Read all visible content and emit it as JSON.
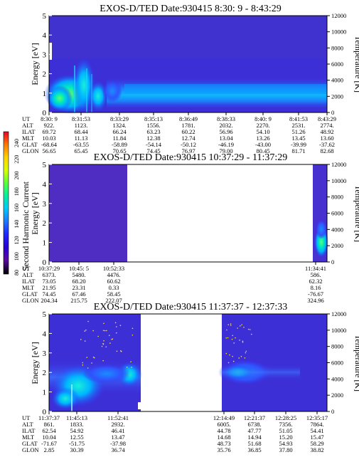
{
  "colorbar": {
    "label": "Second Harmonic Current",
    "ticks": [
      "240",
      "220",
      "200",
      "180",
      "160",
      "140",
      "120",
      "100",
      "80"
    ],
    "colors": [
      "#e8002a",
      "#ff7800",
      "#ffd200",
      "#d8ff00",
      "#5cff3c",
      "#00f0a0",
      "#00c8ff",
      "#1e78ff",
      "#1e28ff",
      "#2800d8",
      "#5a0aa0",
      "#000000"
    ]
  },
  "panels": [
    {
      "title": "EXOS-D/TED   Date:930415   8:30: 9 - 8:43:29",
      "y_ticks": [
        "0",
        "1",
        "2",
        "3",
        "4",
        "5"
      ],
      "y_label": "Energy [eV]",
      "t_ticks": [
        "0",
        "2000",
        "4000",
        "6000",
        "8000",
        "10000",
        "12000"
      ],
      "t_label": "Temperature [K]",
      "ephemeris": {
        "labels": [
          "UT",
          "ALT",
          "ILAT",
          "MLT",
          "GLAT",
          "GLON"
        ],
        "columns": [
          [
            "8:30: 9",
            "922.",
            "69.72",
            "10.03",
            "-68.64",
            "56.65"
          ],
          [
            "8:31:53",
            "1123.",
            "68.44",
            "11.13",
            "-63.55",
            "65.45"
          ],
          [
            "8:33:29",
            "1324.",
            "66.24",
            "11.84",
            "-58.89",
            "70.65"
          ],
          [
            "8:35:13",
            "1556.",
            "63.23",
            "12.38",
            "-54.14",
            "74.45"
          ],
          [
            "8:36:49",
            "1781.",
            "60.22",
            "12.74",
            "-50.12",
            "76.97"
          ],
          [
            "8:38:33",
            "2032.",
            "56.96",
            "13.04",
            "-46.19",
            "79.00"
          ],
          [
            "8:40: 9",
            "2270.",
            "54.10",
            "13.26",
            "-43.00",
            "80.45"
          ],
          [
            "8:41:53",
            "2531.",
            "51.26",
            "13.45",
            "-39.99",
            "81.71"
          ],
          [
            "8:43:29",
            "2774.",
            "48.92",
            "13.60",
            "-37.62",
            "82.68"
          ]
        ]
      }
    },
    {
      "title": "EXOS-D/TED   Date:930415   10:37:29 - 11:37:29",
      "y_ticks": [
        "0",
        "1",
        "2",
        "3",
        "4",
        "5"
      ],
      "y_label": "Energy [eV]",
      "t_ticks": [
        "0",
        "2000",
        "4000",
        "6000",
        "8000",
        "10000",
        "12000"
      ],
      "t_label": "Temperature [K]",
      "ephemeris": {
        "labels": [
          "UT",
          "ALT",
          "ILAT",
          "MLT",
          "GLAT",
          "GLON"
        ],
        "columns": [
          [
            "10:37:29",
            "6373.",
            "73.05",
            "21.95",
            "74.45",
            "204.34"
          ],
          [
            "10:45: 5",
            "5480.",
            "68.20",
            "23.31",
            "67.46",
            "215.75"
          ],
          [
            "10:52:33",
            "4476.",
            "60.62",
            "0.33",
            "58.45",
            "222.07"
          ],
          [
            "11:34:41",
            "586.",
            "62.32",
            "8.16",
            "-76.67",
            "324.96"
          ]
        ]
      }
    },
    {
      "title": "EXOS-D/TED   Date:930415   11:37:37 - 12:37:33",
      "y_ticks": [
        "0",
        "1",
        "2",
        "3",
        "4",
        "5"
      ],
      "y_label": "Energy [eV]",
      "t_ticks": [
        "0",
        "2000",
        "4000",
        "6000",
        "8000",
        "10000",
        "12000"
      ],
      "t_label": "Temperature [K]",
      "ephemeris": {
        "labels": [
          "UT",
          "ALT",
          "ILAT",
          "MLT",
          "GLAT",
          "GLON"
        ],
        "columns": [
          [
            "11:37:37",
            "861.",
            "62.54",
            "10.04",
            "-71.67",
            "2.85"
          ],
          [
            "11:45:13",
            "1833.",
            "54.92",
            "12.55",
            "-51.75",
            "30.39"
          ],
          [
            "11:52:41",
            "2932.",
            "46.41",
            "13.47",
            "-37.98",
            "36.74"
          ],
          [
            "12:14:49",
            "6005.",
            "44.78",
            "14.68",
            "48.73",
            "35.76"
          ],
          [
            "12:21:37",
            "6738.",
            "47.77",
            "14.94",
            "51.68",
            "36.85"
          ],
          [
            "12:28:25",
            "7356.",
            "51.05",
            "15.20",
            "54.93",
            "37.80"
          ],
          [
            "12:35:17",
            "7864.",
            "54.41",
            "15.47",
            "58.29",
            "38.82"
          ]
        ]
      }
    }
  ],
  "chart_data": [
    {
      "type": "heatmap",
      "title": "EXOS-D/TED   Date:930415   8:30: 9 - 8:43:29",
      "ylabel": "Energy [eV]",
      "ylim": [
        0,
        5
      ],
      "y2label": "Temperature [K]",
      "y2lim": [
        0,
        12000
      ],
      "x_ticks": [
        "8:30: 9",
        "8:31:53",
        "8:33:29",
        "8:35:13",
        "8:36:49",
        "8:38:33",
        "8:40: 9",
        "8:41:53",
        "8:43:29"
      ],
      "x_range": [
        0,
        8
      ],
      "colorbar_label": "Second Harmonic Current",
      "colorbar_range": [
        80,
        240
      ],
      "data_coverage": [
        [
          0,
          8
        ]
      ],
      "ridge_energy_eV": {
        "x": [
          0,
          0.5,
          1,
          1.5,
          2,
          3,
          4,
          5,
          6,
          7,
          8
        ],
        "y": [
          1.0,
          1.1,
          1.35,
          1.7,
          1.85,
          1.9,
          1.9,
          1.9,
          1.9,
          1.9,
          1.9
        ]
      }
    },
    {
      "type": "heatmap",
      "title": "EXOS-D/TED   Date:930415   10:37:29 - 11:37:29",
      "ylabel": "Energy [eV]",
      "ylim": [
        0,
        5
      ],
      "y2label": "Temperature [K]",
      "y2lim": [
        0,
        12000
      ],
      "x_ticks": [
        "10:37:29",
        "10:45: 5",
        "10:52:33",
        "11:34:41"
      ],
      "x_positions": [
        0,
        0.57,
        1.13,
        4.3
      ],
      "x_range": [
        0,
        4.5
      ],
      "colorbar_label": "Second Harmonic Current",
      "colorbar_range": [
        80,
        240
      ],
      "data_coverage": [
        [
          0,
          1.13
        ],
        [
          4.3,
          4.5
        ]
      ]
    },
    {
      "type": "heatmap",
      "title": "EXOS-D/TED   Date:930415   11:37:37 - 12:37:33",
      "ylabel": "Energy [eV]",
      "ylim": [
        0,
        5
      ],
      "y2label": "Temperature [K]",
      "y2lim": [
        0,
        12000
      ],
      "x_ticks": [
        "11:37:37",
        "11:45:13",
        "11:52:41",
        "12:14:49",
        "12:21:37",
        "12:28:25",
        "12:35:17"
      ],
      "x_positions": [
        0,
        1,
        2,
        4.9,
        5.8,
        6.7,
        7.6
      ],
      "x_range": [
        0,
        7.6
      ],
      "colorbar_label": "Second Harmonic Current",
      "colorbar_range": [
        80,
        240
      ],
      "data_coverage": [
        [
          0,
          2.15
        ],
        [
          4.0,
          7.6
        ]
      ],
      "ridge_energy_eV": {
        "x": [
          0,
          1,
          2,
          4.2,
          5.0,
          5.8,
          6.4
        ],
        "y": [
          1.7,
          2.05,
          2.1,
          2.0,
          1.95,
          1.9,
          1.8
        ]
      }
    }
  ]
}
